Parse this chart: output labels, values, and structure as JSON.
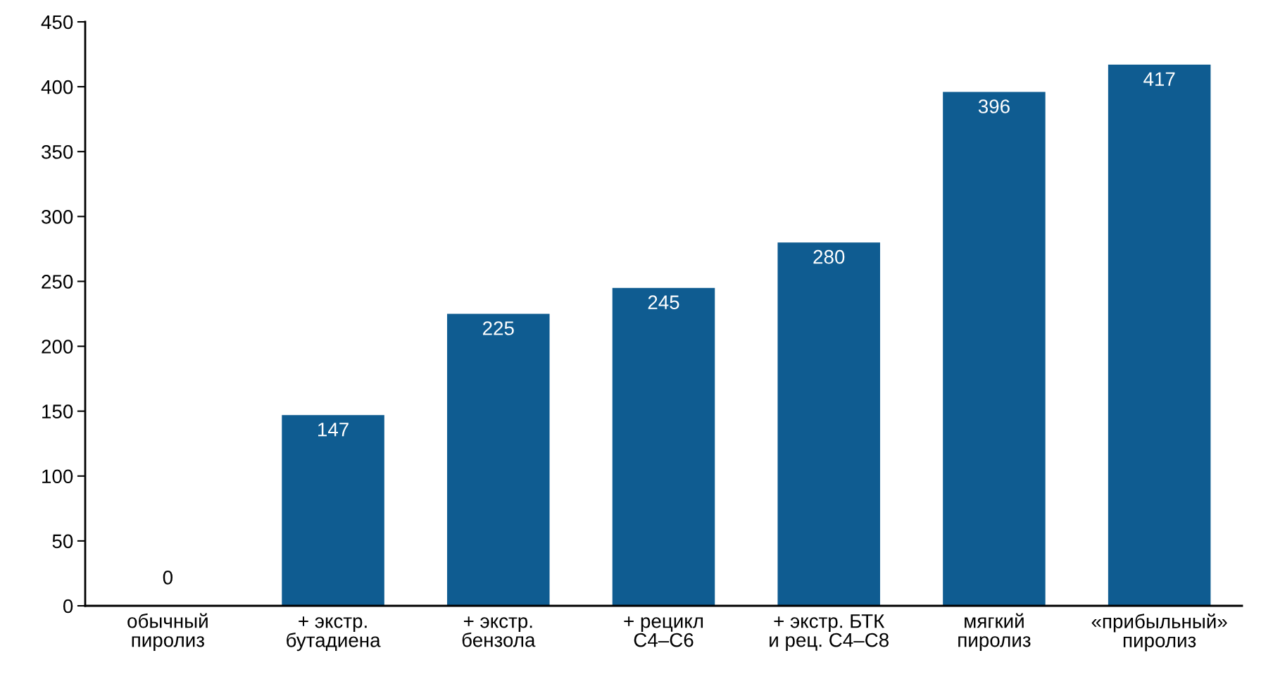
{
  "chart_data": {
    "type": "bar",
    "categories": [
      "обычный\nпиролиз",
      "+ экстр.\nбутадиена",
      "+ экстр.\nбензола",
      "+ рецикл\nC4–C6",
      "+ экстр. БТК\nи рец. C4–C8",
      "мягкий\nпиролиз",
      "«прибыльный»\nпиролиз"
    ],
    "values": [
      0,
      147,
      225,
      245,
      280,
      396,
      417
    ],
    "color": "#0f5c91",
    "ylim": [
      0,
      450
    ],
    "yticks": [
      0,
      50,
      100,
      150,
      200,
      250,
      300,
      350,
      400,
      450
    ],
    "data_labels": true,
    "grid": false,
    "legend": false
  }
}
